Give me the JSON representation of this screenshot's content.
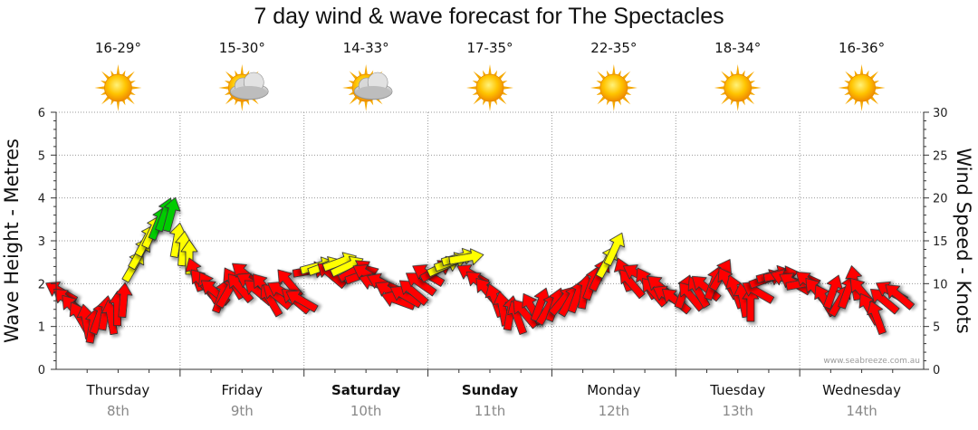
{
  "page": {
    "title": "7 day wind & wave forecast for The Spectacles",
    "watermark": "www.seabreeze.com.au"
  },
  "colors": {
    "strong": "#ff0000",
    "moderate": "#ffff00",
    "light": "#00cc00",
    "grid": "#999999"
  },
  "days": [
    {
      "name": "Thursday",
      "date": "8th",
      "temp": "16-29°",
      "weather": "sunny",
      "bold": false
    },
    {
      "name": "Friday",
      "date": "9th",
      "temp": "15-30°",
      "weather": "partly-cloudy",
      "bold": false
    },
    {
      "name": "Saturday",
      "date": "10th",
      "temp": "14-33°",
      "weather": "partly-cloudy",
      "bold": true
    },
    {
      "name": "Sunday",
      "date": "11th",
      "temp": "17-35°",
      "weather": "sunny",
      "bold": true
    },
    {
      "name": "Monday",
      "date": "12th",
      "temp": "22-35°",
      "weather": "sunny",
      "bold": false
    },
    {
      "name": "Tuesday",
      "date": "13th",
      "temp": "18-34°",
      "weather": "sunny",
      "bold": false
    },
    {
      "name": "Wednesday",
      "date": "14th",
      "temp": "16-36°",
      "weather": "sunny",
      "bold": false
    }
  ],
  "chart_data": {
    "type": "scatter",
    "title": "7 day wind & wave forecast for The Spectacles",
    "xlabel": "",
    "ylabel": "Wave Height - Metres",
    "y2label": "Wind Speed - Knots",
    "ylim": [
      0,
      6
    ],
    "y2lim": [
      0,
      30
    ],
    "yticks": [
      "0",
      "1",
      "2",
      "3",
      "4",
      "5",
      "6"
    ],
    "y2ticks": [
      "0",
      "5",
      "10",
      "15",
      "20",
      "25",
      "30"
    ],
    "xlim_days": [
      0,
      7
    ],
    "grid": true,
    "series": [
      {
        "name": "Wind",
        "note": "t = days from start of Thursday; speed in knots; direction in degrees wind blows toward (0 = up/north, 90 = right/east)",
        "points": [
          {
            "t": 0.0,
            "speed": 9,
            "dir": 300
          },
          {
            "t": 0.05,
            "speed": 8,
            "dir": 310
          },
          {
            "t": 0.1,
            "speed": 7,
            "dir": 320
          },
          {
            "t": 0.15,
            "speed": 6,
            "dir": 330
          },
          {
            "t": 0.2,
            "speed": 5.5,
            "dir": 350
          },
          {
            "t": 0.25,
            "speed": 5,
            "dir": 10
          },
          {
            "t": 0.3,
            "speed": 6,
            "dir": 20
          },
          {
            "t": 0.35,
            "speed": 6.5,
            "dir": 10
          },
          {
            "t": 0.4,
            "speed": 6,
            "dir": 350
          },
          {
            "t": 0.45,
            "speed": 7,
            "dir": 0
          },
          {
            "t": 0.5,
            "speed": 8,
            "dir": 5
          },
          {
            "t": 0.58,
            "speed": 12,
            "dir": 30
          },
          {
            "t": 0.63,
            "speed": 13.5,
            "dir": 30
          },
          {
            "t": 0.68,
            "speed": 15,
            "dir": 28
          },
          {
            "t": 0.73,
            "speed": 16,
            "dir": 25
          },
          {
            "t": 0.78,
            "speed": 17,
            "dir": 22
          },
          {
            "t": 0.83,
            "speed": 18,
            "dir": 20
          },
          {
            "t": 0.88,
            "speed": 18,
            "dir": 15
          },
          {
            "t": 0.93,
            "speed": 15,
            "dir": 10
          },
          {
            "t": 0.98,
            "speed": 14,
            "dir": 5
          },
          {
            "t": 1.03,
            "speed": 13,
            "dir": 0
          },
          {
            "t": 1.08,
            "speed": 11,
            "dir": 340
          },
          {
            "t": 1.14,
            "speed": 10,
            "dir": 320
          },
          {
            "t": 1.19,
            "speed": 9.5,
            "dir": 330
          },
          {
            "t": 1.24,
            "speed": 9,
            "dir": 310
          },
          {
            "t": 1.29,
            "speed": 8.5,
            "dir": 20
          },
          {
            "t": 1.34,
            "speed": 9,
            "dir": 30
          },
          {
            "t": 1.39,
            "speed": 10,
            "dir": 330
          },
          {
            "t": 1.44,
            "speed": 9.5,
            "dir": 320
          },
          {
            "t": 1.49,
            "speed": 11,
            "dir": 310
          },
          {
            "t": 1.54,
            "speed": 10,
            "dir": 300
          },
          {
            "t": 1.59,
            "speed": 9,
            "dir": 310
          },
          {
            "t": 1.64,
            "speed": 9.5,
            "dir": 320
          },
          {
            "t": 1.69,
            "speed": 8,
            "dir": 330
          },
          {
            "t": 1.74,
            "speed": 8.5,
            "dir": 310
          },
          {
            "t": 1.79,
            "speed": 9,
            "dir": 300
          },
          {
            "t": 1.84,
            "speed": 10,
            "dir": 320
          },
          {
            "t": 1.89,
            "speed": 8,
            "dir": 310
          },
          {
            "t": 1.94,
            "speed": 8,
            "dir": 300
          },
          {
            "t": 2.0,
            "speed": 11.5,
            "dir": 80
          },
          {
            "t": 2.06,
            "speed": 12,
            "dir": 75
          },
          {
            "t": 2.12,
            "speed": 12,
            "dir": 70
          },
          {
            "t": 2.18,
            "speed": 11,
            "dir": 310
          },
          {
            "t": 2.24,
            "speed": 12.5,
            "dir": 70
          },
          {
            "t": 2.3,
            "speed": 12,
            "dir": 65
          },
          {
            "t": 2.36,
            "speed": 11.5,
            "dir": 60
          },
          {
            "t": 2.42,
            "speed": 11,
            "dir": 70
          },
          {
            "t": 2.48,
            "speed": 11,
            "dir": 300
          },
          {
            "t": 2.54,
            "speed": 10,
            "dir": 290
          },
          {
            "t": 2.6,
            "speed": 10,
            "dir": 295
          },
          {
            "t": 2.66,
            "speed": 9,
            "dir": 300
          },
          {
            "t": 2.72,
            "speed": 8,
            "dir": 290
          },
          {
            "t": 2.78,
            "speed": 8.5,
            "dir": 300
          },
          {
            "t": 2.84,
            "speed": 9,
            "dir": 310
          },
          {
            "t": 2.9,
            "speed": 10,
            "dir": 305
          },
          {
            "t": 2.96,
            "speed": 11,
            "dir": 300
          },
          {
            "t": 3.02,
            "speed": 11.5,
            "dir": 60
          },
          {
            "t": 3.08,
            "speed": 12,
            "dir": 65
          },
          {
            "t": 3.14,
            "speed": 12.5,
            "dir": 70
          },
          {
            "t": 3.2,
            "speed": 13,
            "dir": 75
          },
          {
            "t": 3.26,
            "speed": 13,
            "dir": 80
          },
          {
            "t": 3.32,
            "speed": 11,
            "dir": 300
          },
          {
            "t": 3.38,
            "speed": 10,
            "dir": 310
          },
          {
            "t": 3.44,
            "speed": 9,
            "dir": 320
          },
          {
            "t": 3.5,
            "speed": 8,
            "dir": 340
          },
          {
            "t": 3.56,
            "speed": 7,
            "dir": 350
          },
          {
            "t": 3.62,
            "speed": 6.5,
            "dir": 10
          },
          {
            "t": 3.68,
            "speed": 6,
            "dir": 340
          },
          {
            "t": 3.74,
            "speed": 6.5,
            "dir": 320
          },
          {
            "t": 3.8,
            "speed": 7,
            "dir": 330
          },
          {
            "t": 3.86,
            "speed": 7.5,
            "dir": 20
          },
          {
            "t": 3.92,
            "speed": 7,
            "dir": 30
          },
          {
            "t": 3.98,
            "speed": 7.5,
            "dir": 20
          },
          {
            "t": 4.04,
            "speed": 8,
            "dir": 40
          },
          {
            "t": 4.1,
            "speed": 8,
            "dir": 30
          },
          {
            "t": 4.16,
            "speed": 8.5,
            "dir": 20
          },
          {
            "t": 4.22,
            "speed": 9,
            "dir": 10
          },
          {
            "t": 4.28,
            "speed": 10,
            "dir": 20
          },
          {
            "t": 4.34,
            "speed": 11,
            "dir": 25
          },
          {
            "t": 4.4,
            "speed": 12.5,
            "dir": 28
          },
          {
            "t": 4.46,
            "speed": 14,
            "dir": 25
          },
          {
            "t": 4.54,
            "speed": 11,
            "dir": 340
          },
          {
            "t": 4.6,
            "speed": 10,
            "dir": 320
          },
          {
            "t": 4.66,
            "speed": 11,
            "dir": 300
          },
          {
            "t": 4.72,
            "speed": 10,
            "dir": 330
          },
          {
            "t": 4.78,
            "speed": 9,
            "dir": 320
          },
          {
            "t": 4.84,
            "speed": 9.5,
            "dir": 310
          },
          {
            "t": 4.9,
            "speed": 8.5,
            "dir": 300
          },
          {
            "t": 4.96,
            "speed": 8,
            "dir": 310
          },
          {
            "t": 5.02,
            "speed": 9,
            "dir": 20
          },
          {
            "t": 5.08,
            "speed": 8.5,
            "dir": 320
          },
          {
            "t": 5.14,
            "speed": 9,
            "dir": 330
          },
          {
            "t": 5.2,
            "speed": 9.5,
            "dir": 310
          },
          {
            "t": 5.26,
            "speed": 10,
            "dir": 20
          },
          {
            "t": 5.32,
            "speed": 11,
            "dir": 30
          },
          {
            "t": 5.38,
            "speed": 10,
            "dir": 330
          },
          {
            "t": 5.44,
            "speed": 9,
            "dir": 340
          },
          {
            "t": 5.5,
            "speed": 8,
            "dir": 350
          },
          {
            "t": 5.56,
            "speed": 7.5,
            "dir": 0
          },
          {
            "t": 5.62,
            "speed": 9,
            "dir": 300
          },
          {
            "t": 5.68,
            "speed": 10.5,
            "dir": 70
          },
          {
            "t": 5.74,
            "speed": 11,
            "dir": 75
          },
          {
            "t": 5.8,
            "speed": 11,
            "dir": 80
          },
          {
            "t": 5.86,
            "speed": 10.5,
            "dir": 290
          },
          {
            "t": 5.92,
            "speed": 10,
            "dir": 300
          },
          {
            "t": 5.98,
            "speed": 10,
            "dir": 80
          },
          {
            "t": 6.04,
            "speed": 10,
            "dir": 310
          },
          {
            "t": 6.1,
            "speed": 9,
            "dir": 320
          },
          {
            "t": 6.16,
            "speed": 8,
            "dir": 330
          },
          {
            "t": 6.22,
            "speed": 9,
            "dir": 20
          },
          {
            "t": 6.28,
            "speed": 8,
            "dir": 30
          },
          {
            "t": 6.34,
            "speed": 9,
            "dir": 20
          },
          {
            "t": 6.4,
            "speed": 10,
            "dir": 350
          },
          {
            "t": 6.46,
            "speed": 9,
            "dir": 320
          },
          {
            "t": 6.52,
            "speed": 7,
            "dir": 330
          },
          {
            "t": 6.58,
            "speed": 6,
            "dir": 340
          },
          {
            "t": 6.64,
            "speed": 8,
            "dir": 310
          },
          {
            "t": 6.7,
            "speed": 9,
            "dir": 300
          },
          {
            "t": 6.76,
            "speed": 8.5,
            "dir": 310
          }
        ]
      }
    ]
  }
}
